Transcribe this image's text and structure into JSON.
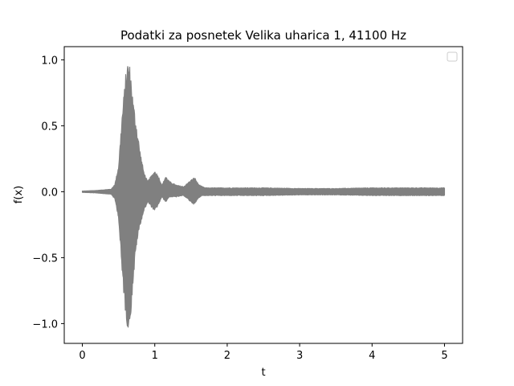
{
  "chart_data": {
    "type": "line",
    "title": "Podatki za posnetek Velika uharica 1, 41100 Hz",
    "xlabel": "t",
    "ylabel": "f(x)",
    "xlim": [
      -0.25,
      5.25
    ],
    "ylim": [
      -1.15,
      1.1
    ],
    "x_ticks": [
      0,
      1,
      2,
      3,
      4,
      5
    ],
    "x_tick_labels": [
      "0",
      "1",
      "2",
      "3",
      "4",
      "5"
    ],
    "y_ticks": [
      -1.0,
      -0.5,
      0.0,
      0.5,
      1.0
    ],
    "y_tick_labels": [
      "−1.0",
      "−0.5",
      "0.0",
      "0.5",
      "1.0"
    ],
    "grid": false,
    "legend": {
      "position": "top-right",
      "entries": []
    },
    "series": [
      {
        "color": "#808080",
        "envelope": {
          "t": [
            0.0,
            0.2,
            0.4,
            0.45,
            0.5,
            0.55,
            0.6,
            0.63,
            0.66,
            0.7,
            0.75,
            0.8,
            0.85,
            0.9,
            1.0,
            1.05,
            1.1,
            1.15,
            1.2,
            1.3,
            1.4,
            1.5,
            1.55,
            1.6,
            1.65,
            1.7,
            1.8,
            2.0,
            2.5,
            3.0,
            3.5,
            4.0,
            4.5,
            5.0
          ],
          "upper": [
            0.005,
            0.01,
            0.02,
            0.06,
            0.2,
            0.6,
            0.9,
            1.0,
            0.95,
            0.7,
            0.5,
            0.3,
            0.15,
            0.08,
            0.16,
            0.12,
            0.05,
            0.12,
            0.08,
            0.05,
            0.04,
            0.09,
            0.11,
            0.06,
            0.04,
            0.03,
            0.03,
            0.03,
            0.03,
            0.025,
            0.025,
            0.03,
            0.03,
            0.03
          ],
          "lower": [
            -0.005,
            -0.01,
            -0.02,
            -0.06,
            -0.2,
            -0.65,
            -0.95,
            -1.05,
            -1.0,
            -0.7,
            -0.4,
            -0.25,
            -0.15,
            -0.08,
            -0.15,
            -0.1,
            -0.04,
            -0.08,
            -0.04,
            -0.04,
            -0.03,
            -0.08,
            -0.1,
            -0.05,
            -0.03,
            -0.03,
            -0.03,
            -0.03,
            -0.03,
            -0.025,
            -0.025,
            -0.03,
            -0.03,
            -0.03
          ]
        }
      }
    ]
  }
}
